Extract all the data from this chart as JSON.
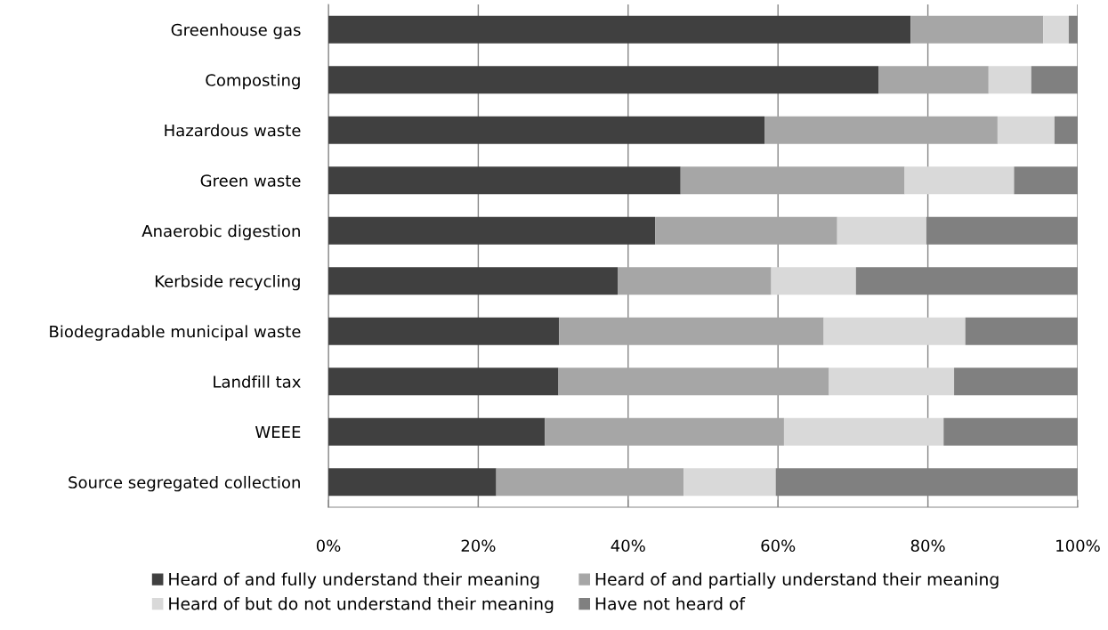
{
  "chart_data": {
    "type": "bar",
    "orientation": "horizontal",
    "stacked": true,
    "categories": [
      "Greenhouse gas",
      "Composting",
      "Hazardous waste",
      "Green waste",
      "Anaerobic digestion",
      "Kerbside recycling",
      "Biodegradable municipal waste",
      "Landfill tax",
      "WEEE",
      "Source segregated collection"
    ],
    "series": [
      {
        "name": "Heard of and fully understand their meaning",
        "color": "#404040",
        "values": [
          77.7,
          73.4,
          58.2,
          47.0,
          43.6,
          38.6,
          30.8,
          30.7,
          28.9,
          22.4
        ]
      },
      {
        "name": "Heard of and partially understand their meaning",
        "color": "#a6a6a6",
        "values": [
          17.7,
          14.7,
          31.1,
          29.9,
          24.3,
          20.5,
          35.3,
          36.1,
          31.9,
          25.0
        ]
      },
      {
        "name": "Heard of but do not understand their meaning",
        "color": "#d9d9d9",
        "values": [
          3.4,
          5.7,
          7.6,
          14.6,
          11.9,
          11.3,
          18.9,
          16.7,
          21.3,
          12.3
        ]
      },
      {
        "name": "Have not heard of",
        "color": "#808080",
        "values": [
          1.2,
          6.2,
          3.1,
          8.5,
          20.2,
          29.6,
          15.0,
          16.5,
          17.9,
          40.3
        ]
      }
    ],
    "xlim": [
      0,
      100
    ],
    "xticks": [
      {
        "value": 0,
        "label": "0%"
      },
      {
        "value": 20,
        "label": "20%"
      },
      {
        "value": 40,
        "label": "40%"
      },
      {
        "value": 60,
        "label": "60%"
      },
      {
        "value": 80,
        "label": "80%"
      },
      {
        "value": 100,
        "label": "100%"
      }
    ],
    "grid": "x",
    "legend": "bottom"
  }
}
